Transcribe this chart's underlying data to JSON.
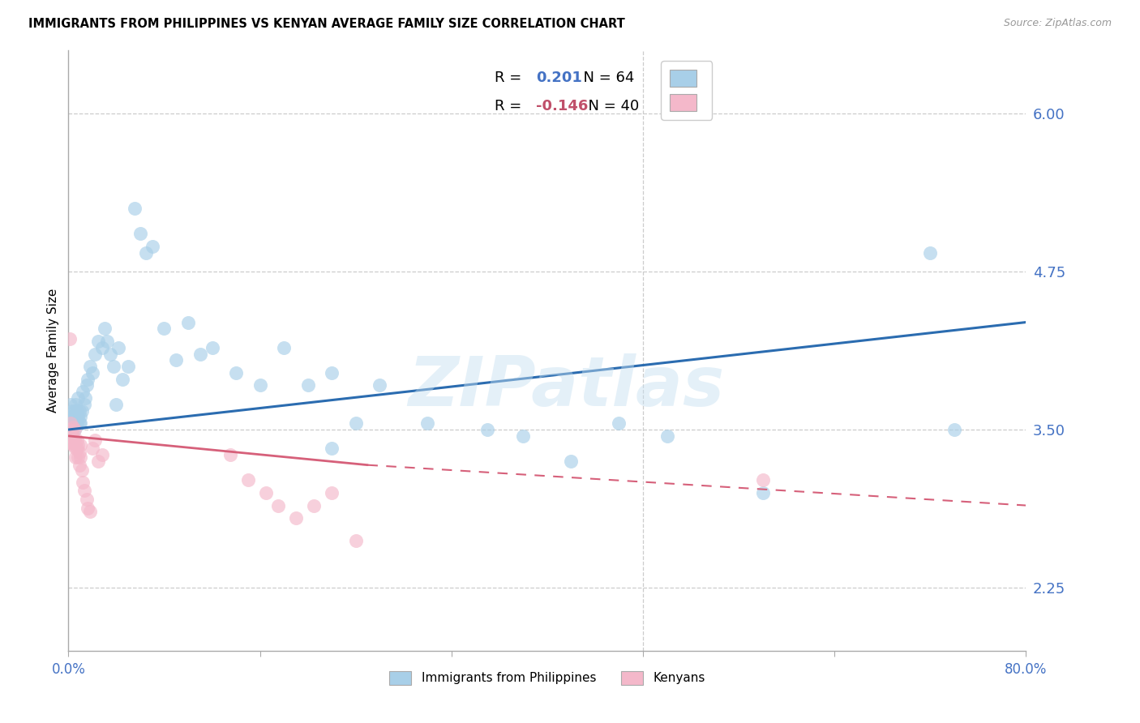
{
  "title": "IMMIGRANTS FROM PHILIPPINES VS KENYAN AVERAGE FAMILY SIZE CORRELATION CHART",
  "source": "Source: ZipAtlas.com",
  "ylabel": "Average Family Size",
  "xlim": [
    0.0,
    0.8
  ],
  "ylim": [
    1.75,
    6.5
  ],
  "yticks": [
    2.25,
    3.5,
    4.75,
    6.0
  ],
  "ytick_labels": [
    "2.25",
    "3.50",
    "4.75",
    "6.00"
  ],
  "xticks": [
    0.0,
    0.16,
    0.32,
    0.48,
    0.64,
    0.8
  ],
  "xticklabels": [
    "0.0%",
    "",
    "",
    "",
    "",
    "80.0%"
  ],
  "blue_R": 0.201,
  "blue_N": 64,
  "pink_R": -0.146,
  "pink_N": 40,
  "axis_color": "#4472c4",
  "watermark": "ZIPatlas",
  "blue_scatter_x": [
    0.001,
    0.002,
    0.002,
    0.003,
    0.003,
    0.004,
    0.004,
    0.005,
    0.005,
    0.006,
    0.006,
    0.007,
    0.007,
    0.008,
    0.008,
    0.009,
    0.009,
    0.01,
    0.01,
    0.011,
    0.012,
    0.013,
    0.014,
    0.015,
    0.016,
    0.018,
    0.02,
    0.022,
    0.025,
    0.028,
    0.03,
    0.032,
    0.035,
    0.038,
    0.04,
    0.042,
    0.045,
    0.05,
    0.055,
    0.06,
    0.065,
    0.07,
    0.08,
    0.09,
    0.1,
    0.11,
    0.12,
    0.14,
    0.16,
    0.18,
    0.2,
    0.22,
    0.24,
    0.26,
    0.3,
    0.35,
    0.38,
    0.42,
    0.46,
    0.5,
    0.22,
    0.58,
    0.72,
    0.74
  ],
  "blue_scatter_y": [
    3.6,
    3.55,
    3.7,
    3.5,
    3.65,
    3.6,
    3.55,
    3.65,
    3.5,
    3.6,
    3.7,
    3.55,
    3.65,
    3.6,
    3.75,
    3.55,
    3.65,
    3.6,
    3.55,
    3.65,
    3.8,
    3.7,
    3.75,
    3.85,
    3.9,
    4.0,
    3.95,
    4.1,
    4.2,
    4.15,
    4.3,
    4.2,
    4.1,
    4.0,
    3.7,
    4.15,
    3.9,
    4.0,
    5.25,
    5.05,
    4.9,
    4.95,
    4.3,
    4.05,
    4.35,
    4.1,
    4.15,
    3.95,
    3.85,
    4.15,
    3.85,
    3.95,
    3.55,
    3.85,
    3.55,
    3.5,
    3.45,
    3.25,
    3.55,
    3.45,
    3.35,
    3.0,
    4.9,
    3.5
  ],
  "pink_scatter_x": [
    0.001,
    0.001,
    0.002,
    0.002,
    0.003,
    0.003,
    0.004,
    0.004,
    0.005,
    0.005,
    0.006,
    0.006,
    0.007,
    0.007,
    0.008,
    0.008,
    0.009,
    0.009,
    0.01,
    0.01,
    0.011,
    0.012,
    0.013,
    0.015,
    0.016,
    0.018,
    0.02,
    0.022,
    0.025,
    0.028,
    0.135,
    0.15,
    0.165,
    0.175,
    0.19,
    0.205,
    0.22,
    0.24,
    0.58,
    0.001
  ],
  "pink_scatter_y": [
    3.5,
    3.4,
    3.55,
    3.45,
    3.48,
    3.4,
    3.52,
    3.38,
    3.5,
    3.42,
    3.35,
    3.28,
    3.42,
    3.35,
    3.38,
    3.28,
    3.32,
    3.22,
    3.38,
    3.28,
    3.18,
    3.08,
    3.02,
    2.95,
    2.88,
    2.85,
    3.35,
    3.42,
    3.25,
    3.3,
    3.3,
    3.1,
    3.0,
    2.9,
    2.8,
    2.9,
    3.0,
    2.62,
    3.1,
    4.22
  ],
  "grid_color": "#cccccc",
  "blue_line_color": "#2b6cb0",
  "pink_line_color": "#d6607a",
  "blue_scatter_color": "#a8cfe8",
  "pink_scatter_color": "#f4b8ca",
  "blue_text_color": "#4472c4",
  "pink_text_color": "#c0506a"
}
